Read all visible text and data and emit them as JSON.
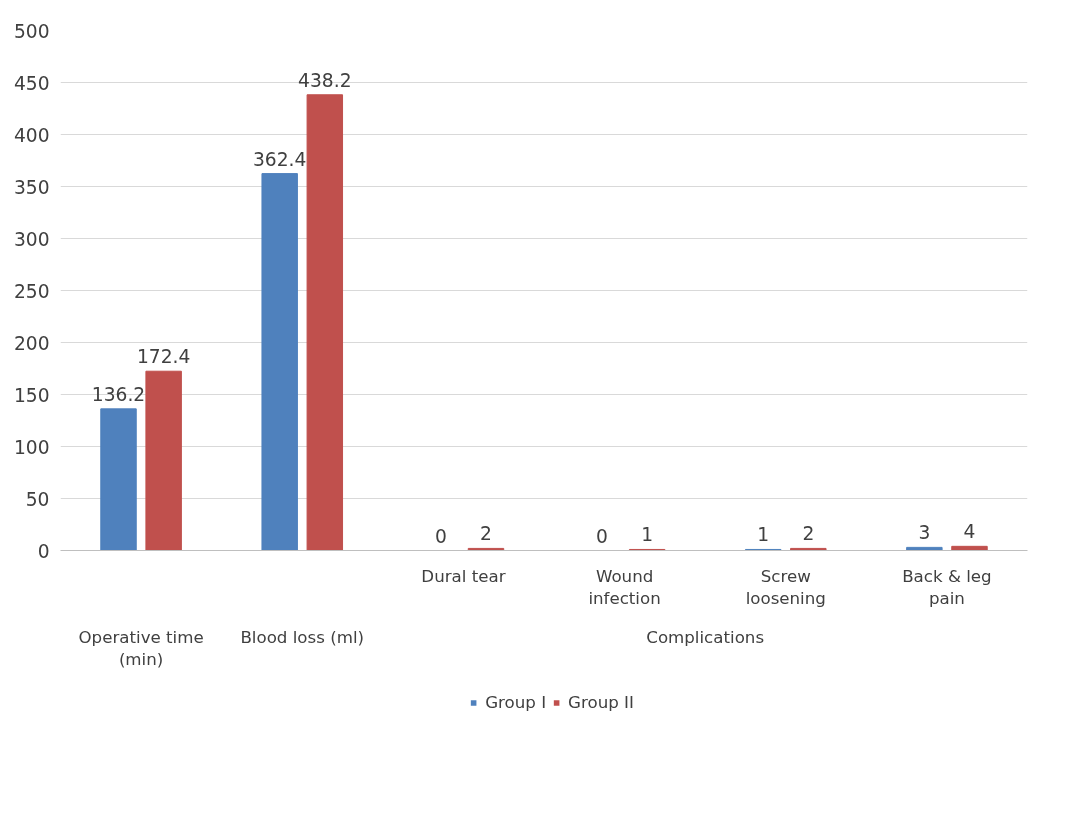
{
  "chart_data": {
    "type": "bar",
    "categories": [
      "Operative time (min)",
      "Blood loss (ml)",
      "Dural tear",
      "Wound infection",
      "Screw loosening",
      "Back & leg pain"
    ],
    "series": [
      {
        "name": "Group I",
        "color": "#4f81bd",
        "values": [
          136.2,
          362.4,
          0,
          0,
          1,
          3
        ]
      },
      {
        "name": "Group II",
        "color": "#c0504d",
        "values": [
          172.4,
          438.2,
          2,
          1,
          2,
          4
        ]
      }
    ],
    "annotations": [
      "Complications"
    ],
    "ylim": [
      0,
      500
    ],
    "yticks": [
      0,
      50,
      100,
      150,
      200,
      250,
      300,
      350,
      400,
      450,
      500
    ],
    "grid": "y",
    "legend": "bottom",
    "data_labels": true
  }
}
